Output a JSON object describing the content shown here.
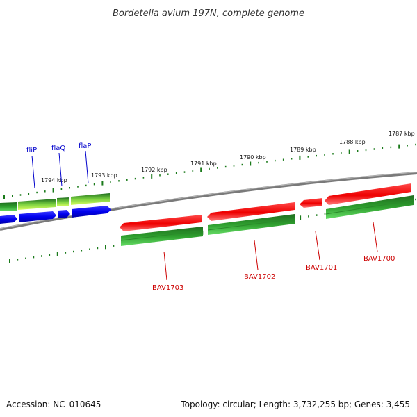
{
  "title": "Bordetella avium 197N, complete genome",
  "accession_label": "Accession: NC_010645",
  "topology_label": "Topology: circular; Length: 3,732,255 bp; Genes: 3,455",
  "colors": {
    "backbone": "#808080",
    "tick": "#1a7a1a",
    "blue_gene": "#0000ee",
    "red_gene": "#ee0000",
    "green_feature": "#2e9e2e",
    "lime_feature": "#b8f040",
    "blue_label": "#0000cc",
    "red_label": "#cc0000"
  },
  "kbp_labels": [
    "1794 kbp",
    "1793 kbp",
    "1792 kbp",
    "1791 kbp",
    "1790 kbp",
    "1789 kbp",
    "1788 kbp",
    "1787 kbp"
  ],
  "top_genes": [
    "fliP",
    "flaQ",
    "flaP"
  ],
  "bottom_genes": [
    "BAV1703",
    "BAV1702",
    "BAV1701",
    "BAV1700"
  ]
}
